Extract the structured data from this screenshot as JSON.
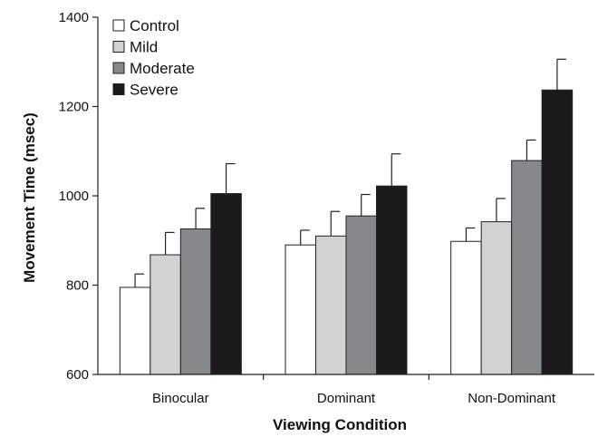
{
  "chart_data": {
    "type": "bar",
    "xlabel": "Viewing Condition",
    "ylabel": "Movement Time (msec)",
    "ylim": [
      600,
      1400
    ],
    "yticks": [
      600,
      800,
      1000,
      1200,
      1400
    ],
    "categories": [
      "Binocular",
      "Dominant",
      "Non-Dominant"
    ],
    "series": [
      {
        "name": "Control",
        "color": "#ffffff",
        "values": [
          795,
          890,
          898
        ],
        "errors": [
          30,
          33,
          30
        ]
      },
      {
        "name": "Mild",
        "color": "#d2d2d4",
        "values": [
          868,
          910,
          942
        ],
        "errors": [
          50,
          55,
          52
        ]
      },
      {
        "name": "Moderate",
        "color": "#87888c",
        "values": [
          926,
          955,
          1079
        ],
        "errors": [
          46,
          48,
          46
        ]
      },
      {
        "name": "Severe",
        "color": "#1c1a1b",
        "values": [
          1005,
          1022,
          1237
        ],
        "errors": [
          67,
          72,
          69
        ]
      }
    ],
    "legend_position": "top-left",
    "grid": false
  }
}
